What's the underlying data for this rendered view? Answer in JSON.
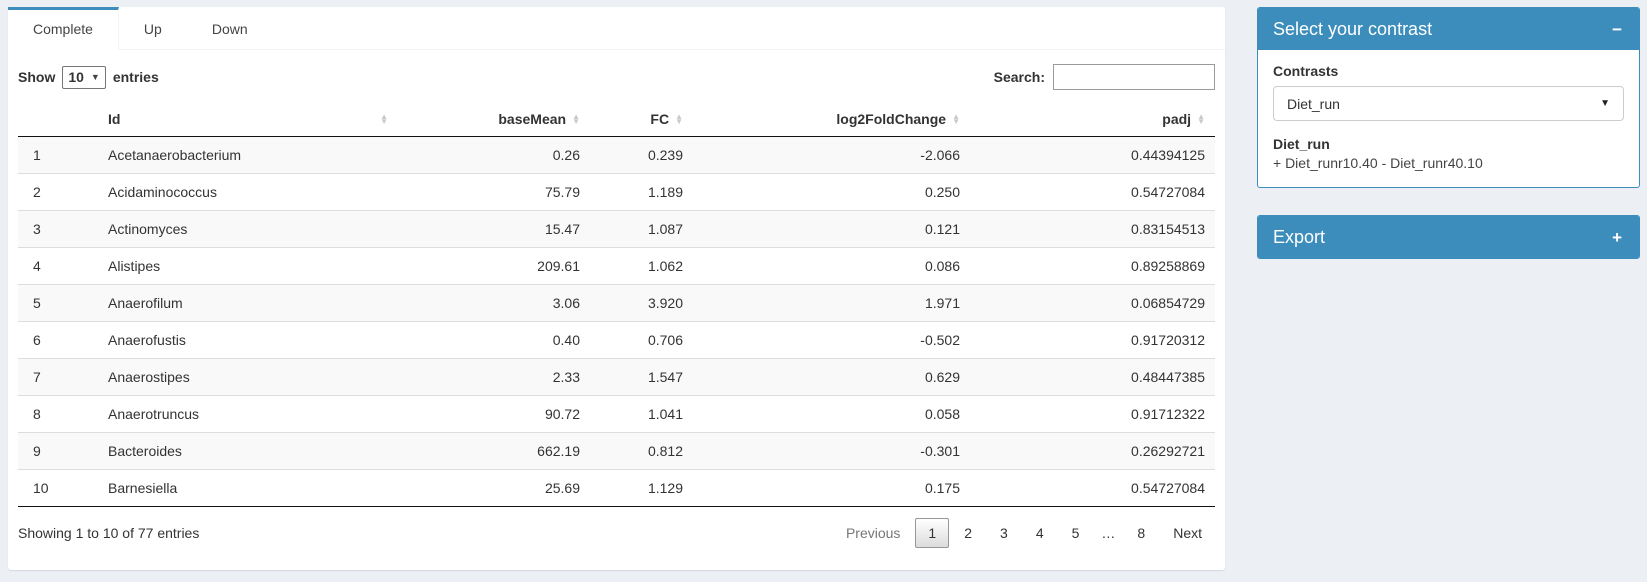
{
  "colors": {
    "primary": "#3c8dbc",
    "page_bg": "#ecf0f5",
    "stripe": "#f9f9f9"
  },
  "tabs": [
    {
      "label": "Complete",
      "active": true
    },
    {
      "label": "Up",
      "active": false
    },
    {
      "label": "Down",
      "active": false
    }
  ],
  "table_controls": {
    "show_label": "Show",
    "page_length": "10",
    "entries_label": "entries",
    "search_label": "Search:",
    "search_value": ""
  },
  "table": {
    "columns": [
      {
        "label": "",
        "align": "left",
        "sortable": false,
        "name": "row-number"
      },
      {
        "label": "Id",
        "align": "left",
        "sortable": true,
        "name": "id"
      },
      {
        "label": "baseMean",
        "align": "right",
        "sortable": true,
        "name": "basemean"
      },
      {
        "label": "FC",
        "align": "right",
        "sortable": true,
        "name": "fc"
      },
      {
        "label": "log2FoldChange",
        "align": "right",
        "sortable": true,
        "name": "log2foldchange"
      },
      {
        "label": "padj",
        "align": "right",
        "sortable": true,
        "name": "padj"
      }
    ],
    "rows": [
      [
        "1",
        "Acetanaerobacterium",
        "0.26",
        "0.239",
        "-2.066",
        "0.44394125"
      ],
      [
        "2",
        "Acidaminococcus",
        "75.79",
        "1.189",
        "0.250",
        "0.54727084"
      ],
      [
        "3",
        "Actinomyces",
        "15.47",
        "1.087",
        "0.121",
        "0.83154513"
      ],
      [
        "4",
        "Alistipes",
        "209.61",
        "1.062",
        "0.086",
        "0.89258869"
      ],
      [
        "5",
        "Anaerofilum",
        "3.06",
        "3.920",
        "1.971",
        "0.06854729"
      ],
      [
        "6",
        "Anaerofustis",
        "0.40",
        "0.706",
        "-0.502",
        "0.91720312"
      ],
      [
        "7",
        "Anaerostipes",
        "2.33",
        "1.547",
        "0.629",
        "0.48447385"
      ],
      [
        "8",
        "Anaerotruncus",
        "90.72",
        "1.041",
        "0.058",
        "0.91712322"
      ],
      [
        "9",
        "Bacteroides",
        "662.19",
        "0.812",
        "-0.301",
        "0.26292721"
      ],
      [
        "10",
        "Barnesiella",
        "25.69",
        "1.129",
        "0.175",
        "0.54727084"
      ]
    ]
  },
  "footer": {
    "info": "Showing 1 to 10 of 77 entries",
    "pagination": [
      {
        "label": "Previous",
        "state": "disabled"
      },
      {
        "label": "1",
        "state": "current"
      },
      {
        "label": "2",
        "state": ""
      },
      {
        "label": "3",
        "state": ""
      },
      {
        "label": "4",
        "state": ""
      },
      {
        "label": "5",
        "state": ""
      },
      {
        "label": "…",
        "state": "ellipsis"
      },
      {
        "label": "8",
        "state": ""
      },
      {
        "label": "Next",
        "state": ""
      }
    ]
  },
  "contrast_box": {
    "title": "Select your contrast",
    "contrasts_label": "Contrasts",
    "selected_contrast": "Diet_run",
    "contrast_name": "Diet_run",
    "contrast_formula": "+ Diet_runr10.40 - Diet_runr40.10"
  },
  "export_box": {
    "title": "Export"
  },
  "icons": {
    "sort_asc": "▲",
    "sort_desc": "▼",
    "caret_down": "▼",
    "collapse_minus": "−",
    "expand_plus": "+"
  }
}
